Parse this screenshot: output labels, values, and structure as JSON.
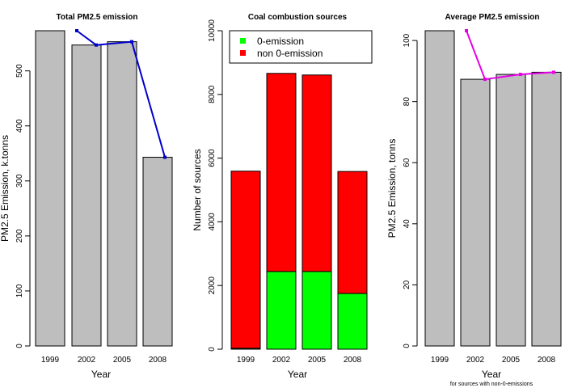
{
  "chart_data": [
    {
      "type": "bar",
      "title": "Total PM2.5 emission",
      "xlabel": "Year",
      "ylabel": "PM2.5 Emission, k.tonns",
      "categories": [
        "1999",
        "2002",
        "2005",
        "2008"
      ],
      "values": [
        573,
        547,
        553,
        343
      ],
      "line_values": [
        573,
        547,
        553,
        343
      ],
      "ylim": [
        0,
        573
      ],
      "yticks": [
        0,
        100,
        200,
        300,
        400,
        500
      ],
      "bar_color": "#bebebe",
      "line_color": "#0000cd"
    },
    {
      "type": "bar",
      "stacked": true,
      "title": "Coal combustion sources",
      "xlabel": "Year",
      "ylabel": "Number of sources",
      "categories": [
        "1999",
        "2002",
        "2005",
        "2008"
      ],
      "series": [
        {
          "name": "0-emission",
          "values": [
            30,
            2440,
            2440,
            1750
          ],
          "color": "#00ff00"
        },
        {
          "name": "non 0-emission",
          "values": [
            5560,
            6220,
            6170,
            3830
          ],
          "color": "#ff0000"
        }
      ],
      "ylim": [
        0,
        10000
      ],
      "yticks": [
        0,
        2000,
        4000,
        6000,
        8000,
        10000
      ],
      "legend_position": "top"
    },
    {
      "type": "bar",
      "title": "Average PM2.5 emission",
      "xlabel": "Year",
      "ylabel": "PM2.5 Emission, tonns",
      "note": "for sources with non-0-emissions",
      "categories": [
        "1999",
        "2002",
        "2005",
        "2008"
      ],
      "values": [
        103.2,
        87.3,
        88.9,
        89.6
      ],
      "line_values": [
        103.2,
        87.3,
        88.9,
        89.6
      ],
      "ylim": [
        0,
        103.2
      ],
      "yticks": [
        0,
        20,
        40,
        60,
        80,
        100
      ],
      "bar_color": "#bebebe",
      "line_color": "#e600e6"
    }
  ]
}
